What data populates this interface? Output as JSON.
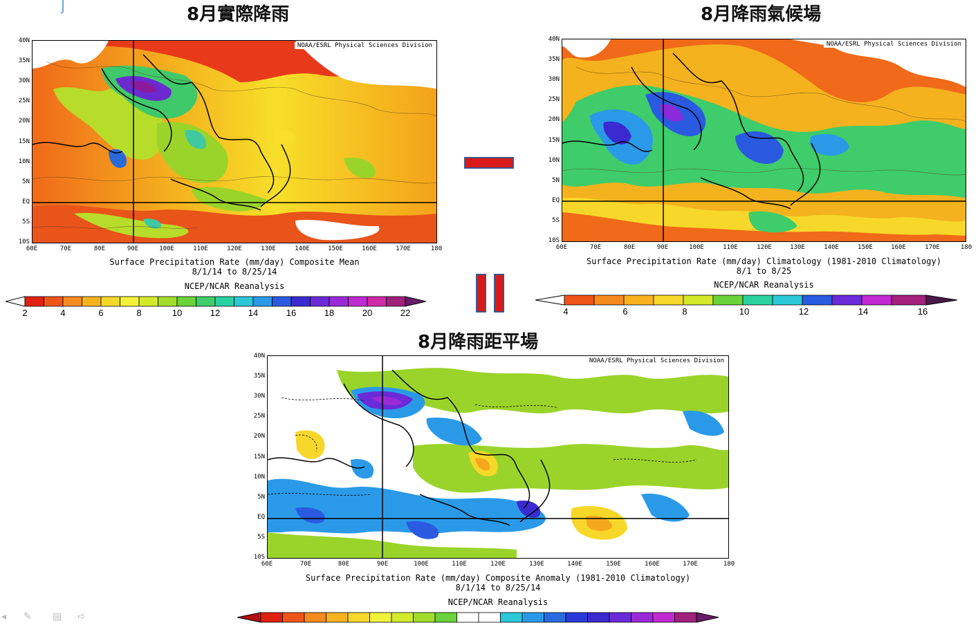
{
  "panels": [
    {
      "id": "actual",
      "title": "8月實際降雨",
      "credit": "NOAA/ESRL Physical Sciences Division",
      "caption_line1": "Surface Precipitation Rate (mm/day) Composite Mean",
      "caption_line2": "8/1/14   to 8/25/14",
      "caption_line3": "NCEP/NCAR Reanalysis",
      "colorbar_ticks": [
        "2",
        "4",
        "6",
        "8",
        "10",
        "12",
        "14",
        "16",
        "18",
        "20",
        "22"
      ]
    },
    {
      "id": "climatology",
      "title": "8月降雨氣候場",
      "credit": "NOAA/ESRL Physical Sciences Division",
      "caption_line1": "Surface Precipitation Rate (mm/day) Climatology (1981-2010 Climatology)",
      "caption_line2": "8/1   to 8/25",
      "caption_line3": "NCEP/NCAR Reanalysis",
      "colorbar_ticks": [
        "4",
        "6",
        "8",
        "10",
        "12",
        "14",
        "16"
      ]
    },
    {
      "id": "anomaly",
      "title": "8月降雨距平場",
      "credit": "NOAA/ESRL Physical Sciences Division",
      "caption_line1": "Surface Precipitation Rate (mm/day) Composite Anomaly (1981-2010 Climatology)",
      "caption_line2": "8/1/14   to 8/25/14",
      "caption_line3": "NCEP/NCAR Reanalysis",
      "colorbar_ticks": []
    }
  ],
  "lat_labels": [
    "40N",
    "35N",
    "30N",
    "25N",
    "20N",
    "15N",
    "10N",
    "5N",
    "EQ",
    "5S",
    "10S"
  ],
  "lon_labels": [
    "60E",
    "70E",
    "80E",
    "90E",
    "100E",
    "110E",
    "120E",
    "130E",
    "140E",
    "150E",
    "160E",
    "170E",
    "180"
  ],
  "colors": {
    "operator_minus": "#d81a1a",
    "operator_equals": "#d81a1a",
    "operator_outline": "#3a5a8a"
  }
}
